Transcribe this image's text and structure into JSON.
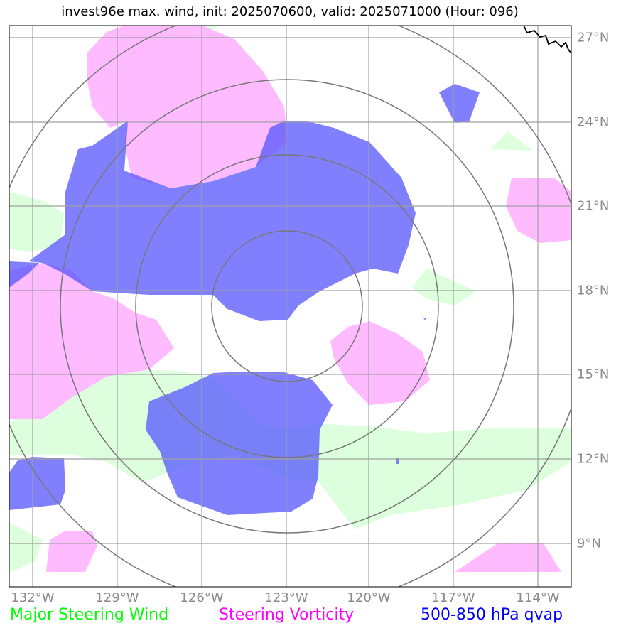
{
  "title": "invest96e max. wind, init: 2025070600, valid: 2025071000 (Hour: 096)",
  "map": {
    "lon_range": [
      -133,
      -113.2
    ],
    "lat_range": [
      7.9,
      27.7
    ],
    "lon_ticks": [
      "132°W",
      "129°W",
      "126°W",
      "123°W",
      "120°W",
      "117°W",
      "114°W"
    ],
    "lat_ticks": [
      "27°N",
      "24°N",
      "21°N",
      "18°N",
      "15°N",
      "12°N",
      "9°N"
    ],
    "storm_center": {
      "lon": -123.0,
      "lat": 16.9
    },
    "range_rings": 4
  },
  "legend": {
    "wind": {
      "label": "Major Steering Wind",
      "color": "#00ff00"
    },
    "vorticity": {
      "label": "Steering Vorticity",
      "color": "#ff00ff"
    },
    "qvap": {
      "label": "500-850 hPa qvap",
      "color": "#0000ff"
    }
  },
  "colors": {
    "wind_fill": "#ddffdd",
    "vorticity_fill": "#ffbbff",
    "qvap_fill": "#7777ff",
    "gridline": "#a0a0a0",
    "ring": "#777777",
    "coast": "#000000"
  }
}
